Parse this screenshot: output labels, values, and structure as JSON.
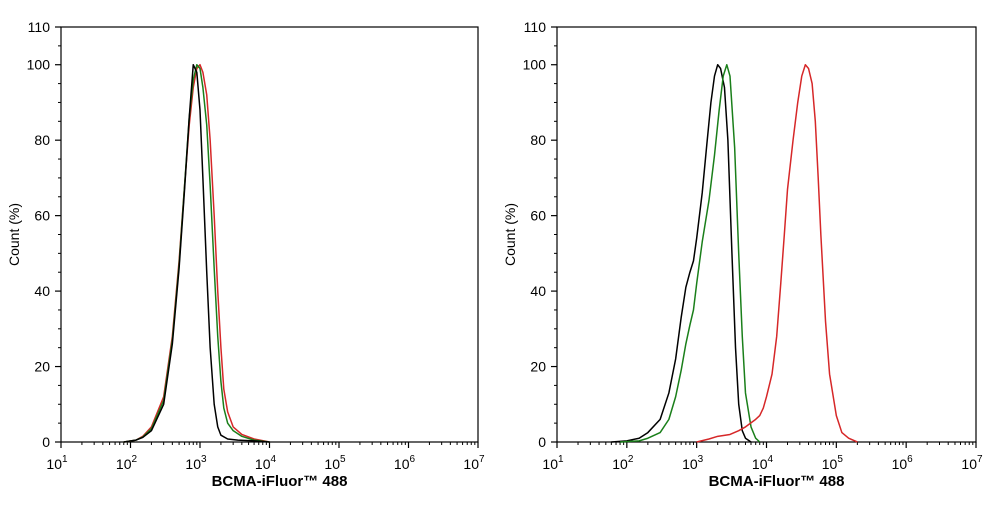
{
  "chart_data": [
    {
      "type": "line",
      "xlabel": "BCMA-iFluor™ 488",
      "ylabel": "Count  (%)",
      "xscale": "log",
      "xlim": [
        10,
        10000000
      ],
      "ylim": [
        0,
        110
      ],
      "x_ticks": [
        {
          "base": "10",
          "exp": "1",
          "value": 10
        },
        {
          "base": "10",
          "exp": "2",
          "value": 100
        },
        {
          "base": "10",
          "exp": "3",
          "value": 1000
        },
        {
          "base": "10",
          "exp": "4",
          "value": 10000
        },
        {
          "base": "10",
          "exp": "5",
          "value": 100000
        },
        {
          "base": "10",
          "exp": "6",
          "value": 1000000
        },
        {
          "base": "10",
          "exp": "7",
          "value": 10000000
        }
      ],
      "y_ticks": [
        "0",
        "20",
        "40",
        "60",
        "80",
        "100",
        "110"
      ],
      "grid": false,
      "series": [
        {
          "color": "#d62728",
          "points": [
            [
              80,
              0
            ],
            [
              120,
              0.5
            ],
            [
              150,
              1.5
            ],
            [
              200,
              4
            ],
            [
              300,
              12
            ],
            [
              400,
              28
            ],
            [
              500,
              48
            ],
            [
              600,
              68
            ],
            [
              700,
              84
            ],
            [
              800,
              94
            ],
            [
              900,
              99
            ],
            [
              1000,
              100
            ],
            [
              1100,
              98
            ],
            [
              1250,
              92
            ],
            [
              1400,
              80
            ],
            [
              1600,
              60
            ],
            [
              1800,
              40
            ],
            [
              2000,
              25
            ],
            [
              2200,
              14
            ],
            [
              2500,
              8
            ],
            [
              3000,
              4
            ],
            [
              4000,
              2
            ],
            [
              6000,
              0.8
            ],
            [
              10000,
              0
            ]
          ]
        },
        {
          "color": "#1a7f1a",
          "points": [
            [
              80,
              0
            ],
            [
              120,
              0.5
            ],
            [
              150,
              1.3
            ],
            [
              200,
              3.5
            ],
            [
              300,
              11
            ],
            [
              400,
              27
            ],
            [
              500,
              47
            ],
            [
              600,
              68
            ],
            [
              700,
              86
            ],
            [
              800,
              96
            ],
            [
              900,
              100
            ],
            [
              1000,
              99
            ],
            [
              1100,
              94
            ],
            [
              1250,
              84
            ],
            [
              1400,
              68
            ],
            [
              1600,
              46
            ],
            [
              1800,
              28
            ],
            [
              2000,
              16
            ],
            [
              2200,
              9
            ],
            [
              2500,
              5
            ],
            [
              3000,
              3
            ],
            [
              4000,
              1.5
            ],
            [
              6000,
              0.5
            ],
            [
              10000,
              0
            ]
          ]
        },
        {
          "color": "#000000",
          "points": [
            [
              80,
              0
            ],
            [
              120,
              0.5
            ],
            [
              150,
              1.2
            ],
            [
              200,
              3
            ],
            [
              300,
              10
            ],
            [
              400,
              26
            ],
            [
              500,
              46
            ],
            [
              600,
              67
            ],
            [
              700,
              86
            ],
            [
              800,
              100
            ],
            [
              900,
              98
            ],
            [
              1000,
              88
            ],
            [
              1100,
              70
            ],
            [
              1250,
              45
            ],
            [
              1400,
              25
            ],
            [
              1600,
              10
            ],
            [
              1800,
              4
            ],
            [
              2000,
              1.8
            ],
            [
              2500,
              0.8
            ],
            [
              3500,
              0.5
            ],
            [
              6000,
              0.3
            ],
            [
              10000,
              0
            ]
          ]
        }
      ]
    },
    {
      "type": "line",
      "xlabel": "BCMA-iFluor™ 488",
      "ylabel": "Count  (%)",
      "xscale": "log",
      "xlim": [
        10,
        10000000
      ],
      "ylim": [
        0,
        110
      ],
      "x_ticks": [
        {
          "base": "10",
          "exp": "1",
          "value": 10
        },
        {
          "base": "10",
          "exp": "2",
          "value": 100
        },
        {
          "base": "10",
          "exp": "3",
          "value": 1000
        },
        {
          "base": "10",
          "exp": "4",
          "value": 10000
        },
        {
          "base": "10",
          "exp": "5",
          "value": 100000
        },
        {
          "base": "10",
          "exp": "6",
          "value": 1000000
        },
        {
          "base": "10",
          "exp": "7",
          "value": 10000000
        }
      ],
      "y_ticks": [
        "0",
        "20",
        "40",
        "60",
        "80",
        "100",
        "110"
      ],
      "grid": false,
      "series": [
        {
          "color": "#000000",
          "points": [
            [
              60,
              0
            ],
            [
              100,
              0.3
            ],
            [
              150,
              1
            ],
            [
              200,
              2.5
            ],
            [
              300,
              6
            ],
            [
              400,
              13
            ],
            [
              500,
              22
            ],
            [
              600,
              33
            ],
            [
              700,
              41
            ],
            [
              800,
              45
            ],
            [
              900,
              48
            ],
            [
              1000,
              54
            ],
            [
              1200,
              66
            ],
            [
              1400,
              79
            ],
            [
              1600,
              90
            ],
            [
              1800,
              97
            ],
            [
              2000,
              100
            ],
            [
              2200,
              99
            ],
            [
              2500,
              94
            ],
            [
              2800,
              80
            ],
            [
              3200,
              50
            ],
            [
              3600,
              25
            ],
            [
              4000,
              10
            ],
            [
              4500,
              3
            ],
            [
              5000,
              1
            ],
            [
              6000,
              0
            ]
          ]
        },
        {
          "color": "#1a7f1a",
          "points": [
            [
              80,
              0
            ],
            [
              150,
              0.3
            ],
            [
              200,
              1
            ],
            [
              300,
              2.5
            ],
            [
              400,
              6
            ],
            [
              500,
              12
            ],
            [
              600,
              19
            ],
            [
              700,
              26
            ],
            [
              800,
              31
            ],
            [
              900,
              35
            ],
            [
              1000,
              42
            ],
            [
              1200,
              53
            ],
            [
              1500,
              64
            ],
            [
              1800,
              76
            ],
            [
              2100,
              88
            ],
            [
              2400,
              97
            ],
            [
              2700,
              100
            ],
            [
              3000,
              97
            ],
            [
              3500,
              78
            ],
            [
              4000,
              50
            ],
            [
              4500,
              28
            ],
            [
              5000,
              13
            ],
            [
              6000,
              4
            ],
            [
              7000,
              1
            ],
            [
              8000,
              0
            ]
          ]
        },
        {
          "color": "#d62728",
          "points": [
            [
              1000,
              0
            ],
            [
              1500,
              0.8
            ],
            [
              2000,
              1.5
            ],
            [
              3000,
              2
            ],
            [
              4000,
              3
            ],
            [
              5000,
              4
            ],
            [
              7000,
              6
            ],
            [
              8000,
              7
            ],
            [
              9000,
              9
            ],
            [
              10000,
              12
            ],
            [
              12000,
              18
            ],
            [
              14000,
              28
            ],
            [
              16000,
              42
            ],
            [
              18000,
              55
            ],
            [
              20000,
              67
            ],
            [
              24000,
              80
            ],
            [
              28000,
              90
            ],
            [
              32000,
              97
            ],
            [
              36000,
              100
            ],
            [
              40000,
              99
            ],
            [
              45000,
              95
            ],
            [
              50000,
              85
            ],
            [
              55000,
              70
            ],
            [
              60000,
              55
            ],
            [
              70000,
              32
            ],
            [
              80000,
              18
            ],
            [
              100000,
              7
            ],
            [
              120000,
              2.5
            ],
            [
              150000,
              1
            ],
            [
              200000,
              0
            ]
          ]
        }
      ]
    }
  ]
}
